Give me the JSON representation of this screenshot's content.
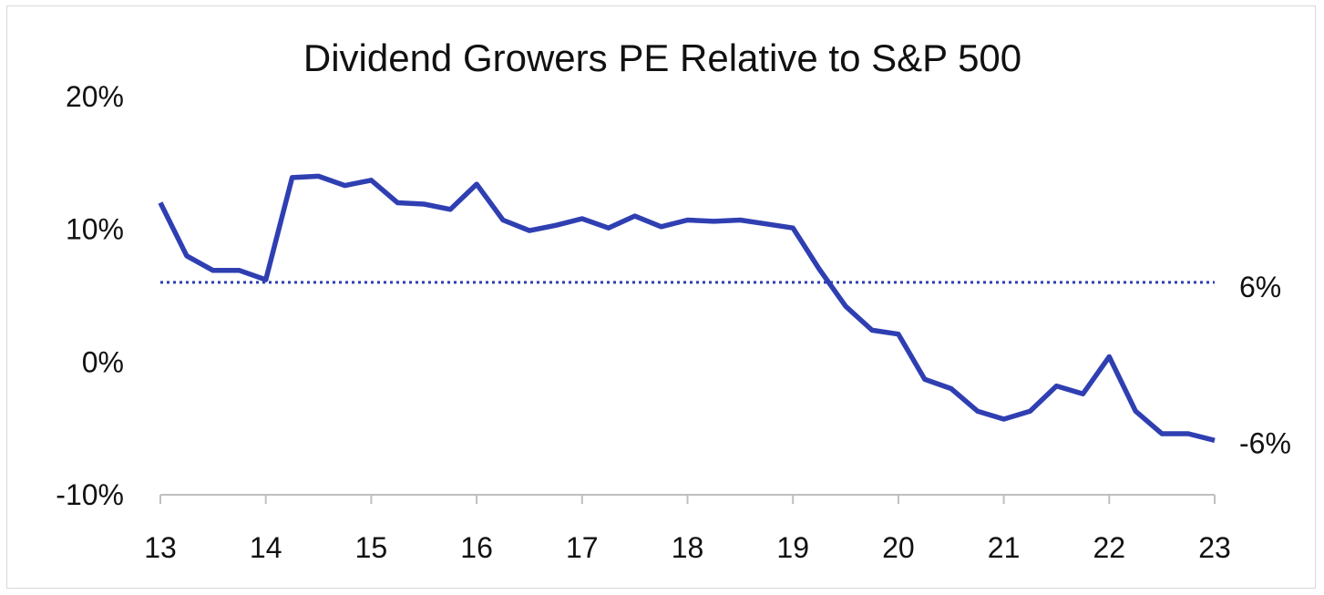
{
  "chart_data": {
    "type": "line",
    "title": "Dividend Growers PE Relative to S&P 500",
    "xlabel": "",
    "ylabel": "",
    "x_tick_labels": [
      "13",
      "14",
      "15",
      "16",
      "17",
      "18",
      "19",
      "20",
      "21",
      "22",
      "23"
    ],
    "y_tick_labels": [
      "20%",
      "10%",
      "0%",
      "-10%"
    ],
    "ylim": [
      -10,
      20
    ],
    "xlim": [
      13,
      23
    ],
    "grid": false,
    "legend": "none",
    "series": [
      {
        "color": "#2f3fb2",
        "x": [
          13.0,
          13.25,
          13.5,
          13.75,
          14.0,
          14.25,
          14.5,
          14.75,
          15.0,
          15.25,
          15.5,
          15.75,
          16.0,
          16.25,
          16.5,
          16.75,
          17.0,
          17.25,
          17.5,
          17.75,
          18.0,
          18.25,
          18.5,
          18.75,
          19.0,
          19.25,
          19.5,
          19.75,
          20.0,
          20.25,
          20.5,
          20.75,
          21.0,
          21.25,
          21.5,
          21.75,
          22.0,
          22.25,
          22.5,
          22.75,
          23.0
        ],
        "values": [
          12.0,
          8.0,
          6.9,
          6.9,
          6.2,
          13.9,
          14.0,
          13.3,
          13.7,
          12.0,
          11.9,
          11.5,
          13.4,
          10.7,
          9.9,
          10.3,
          10.8,
          10.1,
          11.0,
          10.2,
          10.7,
          10.6,
          10.7,
          10.4,
          10.1,
          7.0,
          4.2,
          2.4,
          2.1,
          -1.3,
          -2.0,
          -3.7,
          -4.3,
          -3.7,
          -1.8,
          -2.4,
          0.4,
          -3.7,
          -5.4,
          -5.4,
          -5.9
        ]
      }
    ],
    "reference_line": {
      "value": 6,
      "style": "dotted",
      "color": "#2f3fb2",
      "label": "6%"
    },
    "end_label": "-6%"
  }
}
